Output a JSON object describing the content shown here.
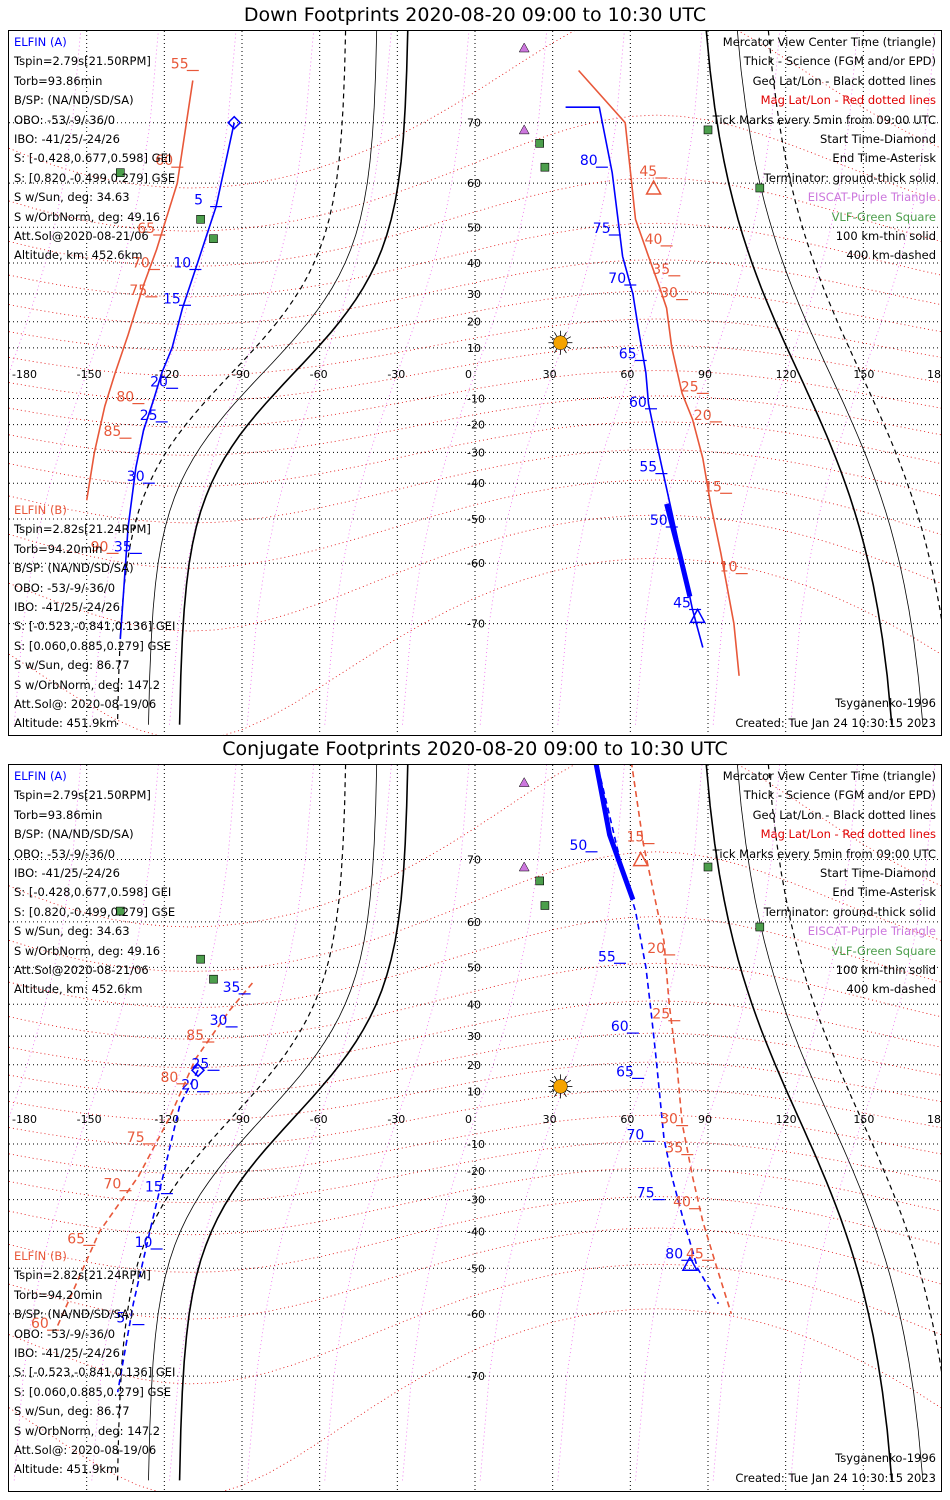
{
  "panels": [
    {
      "id": "down",
      "title": "Down Footprints 2020-08-20 09:00 to 10:30 UTC",
      "sat_a": {
        "name": "ELFIN (A)",
        "lines": [
          "Tspin=2.79s[21.50RPM]",
          "Torb=93.86min",
          "B/SP: (NA/ND/SD/SA)",
          "OBO: -53/-9/-36/0",
          "IBO: -41/25/-24/26",
          "S: [-0.428,0.677,0.598] GEI",
          "S: [0.820,-0.499,0.279] GSE",
          "S w/Sun, deg: 34.63",
          "S w/OrbNorm, deg: 49.16",
          "Att.Sol@2020-08-21/06",
          "Altitude, km: 452.6km"
        ]
      },
      "sat_b": {
        "name": "ELFIN (B)",
        "lines": [
          "Tspin=2.82s[21.24RPM]",
          "Torb=94.20min",
          "B/SP: (NA/ND/SD/SA)",
          "OBO: -53/-9/-36/0",
          "IBO: -41/25/-24/26",
          "S: [-0.523,-0.841,0.136] GEI",
          "S: [0.060,0.885,0.279] GSE",
          "S w/Sun, deg: 86.77",
          "S w/OrbNorm, deg: 147.2",
          "Att.Sol@: 2020-08-19/06",
          "Altitude: 451.9km"
        ]
      },
      "legend": [
        {
          "text": "Mercator View Center Time (triangle)",
          "color": "black"
        },
        {
          "text": "Thick - Science (FGM and/or EPD)",
          "color": "black"
        },
        {
          "text": "Geo Lat/Lon - Black dotted lines",
          "color": "black"
        },
        {
          "text": "Mag Lat/Lon - Red dotted lines",
          "color": "red"
        },
        {
          "text": "Tick Marks every 5min from 09:00 UTC",
          "color": "black"
        },
        {
          "text": "Start Time-Diamond",
          "color": "black"
        },
        {
          "text": "End Time-Asterisk",
          "color": "black"
        },
        {
          "text": "Terminator: ground-thick solid",
          "color": "black"
        },
        {
          "text": "EISCAT-Purple Triangle",
          "color": "violet"
        },
        {
          "text": "VLF-Green Square",
          "color": "green"
        },
        {
          "text": "100 km-thin solid",
          "color": "black"
        },
        {
          "text": "400 km-dashed",
          "color": "black"
        }
      ],
      "model": "Tsyganenko-1996",
      "created": "Created: Tue Jan 24 10:30:15 2023"
    },
    {
      "id": "conjugate",
      "title": "Conjugate Footprints 2020-08-20 09:00 to 10:30 UTC",
      "sat_a": {
        "name": "ELFIN (A)",
        "lines": [
          "Tspin=2.79s[21.50RPM]",
          "Torb=93.86min",
          "B/SP: (NA/ND/SD/SA)",
          "OBO: -53/-9/-36/0",
          "IBO: -41/25/-24/26",
          "S: [-0.428,0.677,0.598] GEI",
          "S: [0.820,-0.499,0.279] GSE",
          "S w/Sun, deg: 34.63",
          "S w/OrbNorm, deg: 49.16",
          "Att.Sol@2020-08-21/06",
          "Altitude, km: 452.6km"
        ]
      },
      "sat_b": {
        "name": "ELFIN (B)",
        "lines": [
          "Tspin=2.82s[21.24RPM]",
          "Torb=94.20min",
          "B/SP: (NA/ND/SD/SA)",
          "OBO: -53/-9/-36/0",
          "IBO: -41/25/-24/26",
          "S: [-0.523,-0.841,0.136] GEI",
          "S: [0.060,0.885,0.279] GSE",
          "S w/Sun, deg: 86.77",
          "S w/OrbNorm, deg: 147.2",
          "Att.Sol@: 2020-08-19/06",
          "Altitude: 451.9km"
        ]
      },
      "legend": [
        {
          "text": "Mercator View Center Time (triangle)",
          "color": "black"
        },
        {
          "text": "Thick - Science (FGM and/or EPD)",
          "color": "black"
        },
        {
          "text": "Geo Lat/Lon - Black dotted lines",
          "color": "black"
        },
        {
          "text": "Mag Lat/Lon - Red dotted lines",
          "color": "red"
        },
        {
          "text": "Tick Marks every 5min from 09:00 UTC",
          "color": "black"
        },
        {
          "text": "Start Time-Diamond",
          "color": "black"
        },
        {
          "text": "End Time-Asterisk",
          "color": "black"
        },
        {
          "text": "Terminator: ground-thick solid",
          "color": "black"
        },
        {
          "text": "EISCAT-Purple Triangle",
          "color": "violet"
        },
        {
          "text": "VLF-Green Square",
          "color": "green"
        },
        {
          "text": "100 km-thin solid",
          "color": "black"
        },
        {
          "text": "400 km-dashed",
          "color": "black"
        }
      ],
      "model": "Tsyganenko-1996",
      "created": "Created: Tue Jan 24 10:30:15 2023"
    }
  ],
  "map": {
    "lon_ticks": [
      "-180",
      "-150",
      "-120",
      "-90",
      "-60",
      "-30",
      "0",
      "30",
      "60",
      "90",
      "120",
      "150",
      "180"
    ],
    "lat_ticks": [
      "70",
      "60",
      "50",
      "40",
      "30",
      "20",
      "10",
      "-10",
      "-20",
      "-30",
      "-40",
      "-50",
      "-60",
      "-70"
    ],
    "lat_values": [
      70,
      60,
      50,
      40,
      30,
      20,
      10,
      -10,
      -20,
      -30,
      -40,
      -50,
      -60,
      -70
    ],
    "sun": {
      "lon": 33,
      "lat": 12
    },
    "eiscat_sites": [
      {
        "lon": 19,
        "lat": 78
      },
      {
        "lon": 19,
        "lat": 69
      }
    ],
    "vlf_sites": [
      {
        "lon": 25,
        "lat": 67
      },
      {
        "lon": 27,
        "lat": 63
      },
      {
        "lon": 90,
        "lat": 69
      },
      {
        "lon": -137,
        "lat": 62
      },
      {
        "lon": -106,
        "lat": 52
      },
      {
        "lon": -101,
        "lat": 47
      },
      {
        "lon": 110,
        "lat": 59
      }
    ]
  },
  "colors": {
    "elfin_a": "#0000ff",
    "elfin_b": "#e8583a",
    "mag_grid": "#e00000",
    "geo_grid": "#000000",
    "eiscat": "#cc77dd",
    "vlf": "#4c9e4c",
    "sun": "#f5a300"
  },
  "tracks": {
    "down": {
      "a": {
        "north": [
          [
            -93,
            70
          ],
          [
            -100,
            55
          ],
          [
            -108,
            38
          ],
          [
            -113,
            25
          ],
          [
            -117,
            10
          ],
          [
            -121,
            0
          ],
          [
            -124,
            -10
          ],
          [
            -128,
            -22
          ],
          [
            -131,
            -35
          ],
          [
            -134,
            -52
          ],
          [
            -137,
            -72
          ]
        ],
        "ticks": [
          {
            "label": "5",
            "lon": -100,
            "lat": 55
          },
          {
            "label": "10",
            "lon": -108,
            "lat": 38
          },
          {
            "label": "15",
            "lon": -112,
            "lat": 26
          },
          {
            "label": "20",
            "lon": -117,
            "lat": -6
          },
          {
            "label": "25",
            "lon": -121,
            "lat": -19
          },
          {
            "label": "30",
            "lon": -126,
            "lat": -40
          },
          {
            "label": "35",
            "lon": -131,
            "lat": -58
          }
        ],
        "south": [
          [
            35,
            72
          ],
          [
            48,
            72
          ],
          [
            53,
            62
          ],
          [
            57,
            42
          ],
          [
            61,
            30
          ],
          [
            63,
            18
          ],
          [
            66,
            0
          ],
          [
            67,
            -12
          ],
          [
            70,
            -26
          ],
          [
            73,
            -38
          ],
          [
            78,
            -54
          ],
          [
            84,
            -68
          ],
          [
            88,
            -73
          ]
        ],
        "south_ticks": [
          {
            "label": "80",
            "lon": 49,
            "lat": 63
          },
          {
            "label": "75",
            "lon": 54,
            "lat": 48
          },
          {
            "label": "70",
            "lon": 60,
            "lat": 33
          },
          {
            "label": "65",
            "lon": 64,
            "lat": 5
          },
          {
            "label": "60",
            "lon": 68,
            "lat": -14
          },
          {
            "label": "55",
            "lon": 72,
            "lat": -37
          },
          {
            "label": "50",
            "lon": 76,
            "lat": -52
          },
          {
            "label": "45",
            "lon": 85,
            "lat": -68
          }
        ],
        "science": [
          [
            74,
            -46
          ],
          [
            79,
            -58
          ],
          [
            83,
            -66
          ]
        ]
      },
      "b": {
        "north": [
          [
            -109,
            75
          ],
          [
            -115,
            60
          ],
          [
            -123,
            44
          ],
          [
            -128,
            33
          ],
          [
            -134,
            15
          ],
          [
            -139,
            0
          ],
          [
            -143,
            -13
          ],
          [
            -147,
            -30
          ],
          [
            -150,
            -45
          ]
        ],
        "ticks": [
          {
            "label": "55",
            "lon": -109,
            "lat": 76
          },
          {
            "label": "60",
            "lon": -115,
            "lat": 63
          },
          {
            "label": "65",
            "lon": -122,
            "lat": 48
          },
          {
            "label": "70",
            "lon": -124,
            "lat": 38
          },
          {
            "label": "75",
            "lon": -125,
            "lat": 29
          },
          {
            "label": "80",
            "lon": -130,
            "lat": -12
          },
          {
            "label": "85",
            "lon": -135,
            "lat": -25
          },
          {
            "label": "90",
            "lon": -140,
            "lat": -58
          }
        ],
        "south": [
          [
            40,
            76
          ],
          [
            58,
            70
          ],
          [
            62,
            52
          ],
          [
            67,
            42
          ],
          [
            71,
            33
          ],
          [
            74,
            25
          ],
          [
            76,
            10
          ],
          [
            80,
            -8
          ],
          [
            84,
            -18
          ],
          [
            88,
            -32
          ],
          [
            91,
            -46
          ],
          [
            95,
            -58
          ],
          [
            100,
            -70
          ],
          [
            102,
            -76
          ]
        ],
        "south_ticks": [
          {
            "label": "45",
            "lon": 72,
            "lat": 61
          },
          {
            "label": "40",
            "lon": 74,
            "lat": 45
          },
          {
            "label": "35",
            "lon": 77,
            "lat": 36
          },
          {
            "label": "30",
            "lon": 80,
            "lat": 28
          },
          {
            "label": "25",
            "lon": 88,
            "lat": -8
          },
          {
            "label": "20",
            "lon": 93,
            "lat": -19
          },
          {
            "label": "15",
            "lon": 97,
            "lat": -43
          },
          {
            "label": "10",
            "lon": 103,
            "lat": -62
          }
        ]
      }
    },
    "conjugate": {
      "a": {
        "north": [
          [
            -107,
            18
          ],
          [
            -114,
            5
          ],
          [
            -120,
            -20
          ],
          [
            -125,
            -38
          ],
          [
            -132,
            -58
          ],
          [
            -138,
            -72
          ]
        ],
        "ticks": [
          {
            "label": "35",
            "lon": -89,
            "lat": 43
          },
          {
            "label": "30",
            "lon": -94,
            "lat": 33
          },
          {
            "label": "25",
            "lon": -101,
            "lat": 18
          },
          {
            "label": "20",
            "lon": -105,
            "lat": 10
          },
          {
            "label": "15",
            "lon": -119,
            "lat": -28
          },
          {
            "label": "10",
            "lon": -123,
            "lat": -45
          },
          {
            "label": "5",
            "lon": -130,
            "lat": -62
          }
        ],
        "south": [
          [
            45,
            81
          ],
          [
            56,
            70
          ],
          [
            62,
            62
          ],
          [
            66,
            50
          ],
          [
            68,
            38
          ],
          [
            70,
            22
          ],
          [
            73,
            -8
          ],
          [
            76,
            -22
          ],
          [
            80,
            -35
          ],
          [
            86,
            -50
          ],
          [
            94,
            -58
          ]
        ],
        "south_ticks": [
          {
            "label": "50",
            "lon": 45,
            "lat": 71
          },
          {
            "label": "55",
            "lon": 56,
            "lat": 51
          },
          {
            "label": "60",
            "lon": 61,
            "lat": 31
          },
          {
            "label": "65",
            "lon": 63,
            "lat": 15
          },
          {
            "label": "70",
            "lon": 67,
            "lat": -9
          },
          {
            "label": "75",
            "lon": 71,
            "lat": -30
          },
          {
            "label": "80",
            "lon": 82,
            "lat": -48
          }
        ],
        "science": [
          [
            45,
            81
          ],
          [
            52,
            73
          ],
          [
            61,
            64
          ]
        ]
      },
      "b": {
        "north": [
          [
            -86,
            46
          ],
          [
            -95,
            38
          ],
          [
            -108,
            22
          ],
          [
            -118,
            0
          ],
          [
            -130,
            -22
          ],
          [
            -145,
            -40
          ],
          [
            -162,
            -63
          ]
        ],
        "ticks": [
          {
            "label": "85",
            "lon": -103,
            "lat": 28
          },
          {
            "label": "80",
            "lon": -113,
            "lat": 13
          },
          {
            "label": "75",
            "lon": -126,
            "lat": -10
          },
          {
            "label": "70",
            "lon": -135,
            "lat": -27
          },
          {
            "label": "65",
            "lon": -149,
            "lat": -44
          },
          {
            "label": "60",
            "lon": -163,
            "lat": -63
          }
        ],
        "south": [
          [
            57,
            83
          ],
          [
            65,
            72
          ],
          [
            73,
            56
          ],
          [
            75,
            40
          ],
          [
            78,
            20
          ],
          [
            80,
            -2
          ],
          [
            84,
            -22
          ],
          [
            88,
            -37
          ],
          [
            93,
            -49
          ],
          [
            99,
            -60
          ]
        ],
        "south_ticks": [
          {
            "label": "15",
            "lon": 67,
            "lat": 72
          },
          {
            "label": "20",
            "lon": 75,
            "lat": 53
          },
          {
            "label": "25",
            "lon": 77,
            "lat": 35
          },
          {
            "label": "30",
            "lon": 80,
            "lat": -3
          },
          {
            "label": "35",
            "lon": 82,
            "lat": -14
          },
          {
            "label": "40",
            "lon": 85,
            "lat": -33
          },
          {
            "label": "45",
            "lon": 90,
            "lat": -48
          }
        ]
      }
    }
  }
}
